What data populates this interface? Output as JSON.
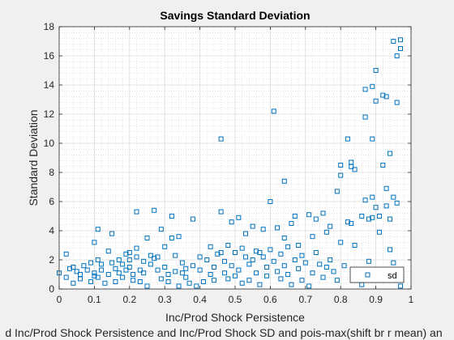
{
  "chart_data": {
    "type": "scatter",
    "title": "Savings Standard Deviation",
    "xlabel": "Inc/Prod Shock Persistence",
    "ylabel": "Standard Deviation",
    "bottom_caption": "d Inc/Prod Shock Persistence and Inc/Prod Shock SD and pois-max(shift br r mean) an",
    "xlim": [
      0,
      1
    ],
    "ylim": [
      0,
      18
    ],
    "x_ticks": [
      "0",
      "0.1",
      "0.2",
      "0.3",
      "0.4",
      "0.5",
      "0.6",
      "0.7",
      "0.8",
      "0.9",
      "1"
    ],
    "y_ticks": [
      "0",
      "2",
      "4",
      "6",
      "8",
      "10",
      "12",
      "14",
      "16",
      "18"
    ],
    "grid": true,
    "minor_grid": true,
    "legend_position": "bottom-right",
    "marker": "square",
    "series_color": "#0072bd",
    "series": [
      {
        "name": "sd",
        "points": [
          [
            0.0,
            1.1
          ],
          [
            0.02,
            0.8
          ],
          [
            0.02,
            2.4
          ],
          [
            0.03,
            1.4
          ],
          [
            0.04,
            1.5
          ],
          [
            0.04,
            0.4
          ],
          [
            0.05,
            1.2
          ],
          [
            0.06,
            0.7
          ],
          [
            0.06,
            1.0
          ],
          [
            0.07,
            1.6
          ],
          [
            0.08,
            1.3
          ],
          [
            0.09,
            0.5
          ],
          [
            0.09,
            1.8
          ],
          [
            0.1,
            1.1
          ],
          [
            0.1,
            0.9
          ],
          [
            0.1,
            3.2
          ],
          [
            0.11,
            4.1
          ],
          [
            0.11,
            0.8
          ],
          [
            0.11,
            2.0
          ],
          [
            0.12,
            1.7
          ],
          [
            0.12,
            1.3
          ],
          [
            0.13,
            0.4
          ],
          [
            0.14,
            1.0
          ],
          [
            0.14,
            2.6
          ],
          [
            0.15,
            1.8
          ],
          [
            0.15,
            3.8
          ],
          [
            0.16,
            0.5
          ],
          [
            0.16,
            1.4
          ],
          [
            0.17,
            2.0
          ],
          [
            0.17,
            1.1
          ],
          [
            0.18,
            1.7
          ],
          [
            0.18,
            0.8
          ],
          [
            0.19,
            2.4
          ],
          [
            0.19,
            1.3
          ],
          [
            0.2,
            2.5
          ],
          [
            0.2,
            2.0
          ],
          [
            0.2,
            1.5
          ],
          [
            0.21,
            1.0
          ],
          [
            0.21,
            0.6
          ],
          [
            0.22,
            2.2
          ],
          [
            0.22,
            2.8
          ],
          [
            0.22,
            5.3
          ],
          [
            0.23,
            1.3
          ],
          [
            0.23,
            0.5
          ],
          [
            0.24,
            1.9
          ],
          [
            0.24,
            1.1
          ],
          [
            0.25,
            0.2
          ],
          [
            0.25,
            3.5
          ],
          [
            0.26,
            2.3
          ],
          [
            0.26,
            1.7
          ],
          [
            0.27,
            5.4
          ],
          [
            0.27,
            2.1
          ],
          [
            0.28,
            2.2
          ],
          [
            0.28,
            1.3
          ],
          [
            0.29,
            0.7
          ],
          [
            0.29,
            4.1
          ],
          [
            0.3,
            2.9
          ],
          [
            0.3,
            1.5
          ],
          [
            0.31,
            1.0
          ],
          [
            0.31,
            0.5
          ],
          [
            0.32,
            5.0
          ],
          [
            0.32,
            3.5
          ],
          [
            0.33,
            1.2
          ],
          [
            0.33,
            2.3
          ],
          [
            0.34,
            0.2
          ],
          [
            0.34,
            3.6
          ],
          [
            0.35,
            1.8
          ],
          [
            0.35,
            1.1
          ],
          [
            0.36,
            0.8
          ],
          [
            0.36,
            1.4
          ],
          [
            0.37,
            0.4
          ],
          [
            0.38,
            4.8
          ],
          [
            0.38,
            1.6
          ],
          [
            0.39,
            0.2
          ],
          [
            0.4,
            2.2
          ],
          [
            0.4,
            1.3
          ],
          [
            0.41,
            0.5
          ],
          [
            0.42,
            2.0
          ],
          [
            0.43,
            1.0
          ],
          [
            0.43,
            2.9
          ],
          [
            0.44,
            1.5
          ],
          [
            0.44,
            0.6
          ],
          [
            0.45,
            2.4
          ],
          [
            0.46,
            2.5
          ],
          [
            0.46,
            5.3
          ],
          [
            0.46,
            10.3
          ],
          [
            0.47,
            1.9
          ],
          [
            0.47,
            1.1
          ],
          [
            0.48,
            0.7
          ],
          [
            0.48,
            3.0
          ],
          [
            0.49,
            4.6
          ],
          [
            0.49,
            1.6
          ],
          [
            0.5,
            0.9
          ],
          [
            0.5,
            2.5
          ],
          [
            0.51,
            4.9
          ],
          [
            0.51,
            1.3
          ],
          [
            0.52,
            0.4
          ],
          [
            0.52,
            2.8
          ],
          [
            0.53,
            2.2
          ],
          [
            0.53,
            3.8
          ],
          [
            0.54,
            1.7
          ],
          [
            0.54,
            0.6
          ],
          [
            0.55,
            2.0
          ],
          [
            0.55,
            4.3
          ],
          [
            0.56,
            1.1
          ],
          [
            0.56,
            2.6
          ],
          [
            0.57,
            2.5
          ],
          [
            0.57,
            0.3
          ],
          [
            0.58,
            4.1
          ],
          [
            0.58,
            2.2
          ],
          [
            0.59,
            1.5
          ],
          [
            0.59,
            0.9
          ],
          [
            0.6,
            6.0
          ],
          [
            0.6,
            2.7
          ],
          [
            0.61,
            12.2
          ],
          [
            0.61,
            1.9
          ],
          [
            0.62,
            4.2
          ],
          [
            0.62,
            1.2
          ],
          [
            0.63,
            2.4
          ],
          [
            0.63,
            0.7
          ],
          [
            0.64,
            3.5
          ],
          [
            0.64,
            1.6
          ],
          [
            0.64,
            7.4
          ],
          [
            0.65,
            2.9
          ],
          [
            0.65,
            1.0
          ],
          [
            0.66,
            4.5
          ],
          [
            0.66,
            0.3
          ],
          [
            0.67,
            2.0
          ],
          [
            0.67,
            5.0
          ],
          [
            0.68,
            3.0
          ],
          [
            0.68,
            1.4
          ],
          [
            0.69,
            0.6
          ],
          [
            0.69,
            2.3
          ],
          [
            0.7,
            1.8
          ],
          [
            0.71,
            5.1
          ],
          [
            0.71,
            0.2
          ],
          [
            0.72,
            3.6
          ],
          [
            0.72,
            1.1
          ],
          [
            0.73,
            4.8
          ],
          [
            0.73,
            2.5
          ],
          [
            0.74,
            1.7
          ],
          [
            0.75,
            5.2
          ],
          [
            0.75,
            0.8
          ],
          [
            0.76,
            3.9
          ],
          [
            0.76,
            1.5
          ],
          [
            0.77,
            2.0
          ],
          [
            0.77,
            4.3
          ],
          [
            0.78,
            1.2
          ],
          [
            0.79,
            6.7
          ],
          [
            0.79,
            0.6
          ],
          [
            0.8,
            8.5
          ],
          [
            0.8,
            7.8
          ],
          [
            0.8,
            3.2
          ],
          [
            0.81,
            1.6
          ],
          [
            0.82,
            10.3
          ],
          [
            0.82,
            4.6
          ],
          [
            0.83,
            8.4
          ],
          [
            0.83,
            8.7
          ],
          [
            0.83,
            4.5
          ],
          [
            0.84,
            8.2
          ],
          [
            0.84,
            3.0
          ],
          [
            0.85,
            1.1
          ],
          [
            0.86,
            0.3
          ],
          [
            0.86,
            5.0
          ],
          [
            0.87,
            13.7
          ],
          [
            0.87,
            11.8
          ],
          [
            0.87,
            6.1
          ],
          [
            0.88,
            1.9
          ],
          [
            0.88,
            4.8
          ],
          [
            0.89,
            13.9
          ],
          [
            0.89,
            6.3
          ],
          [
            0.89,
            4.9
          ],
          [
            0.89,
            10.3
          ],
          [
            0.9,
            15.0
          ],
          [
            0.9,
            12.9
          ],
          [
            0.9,
            5.6
          ],
          [
            0.91,
            5.0
          ],
          [
            0.91,
            3.9
          ],
          [
            0.92,
            13.3
          ],
          [
            0.92,
            8.5
          ],
          [
            0.93,
            13.2
          ],
          [
            0.93,
            6.9
          ],
          [
            0.93,
            5.7
          ],
          [
            0.94,
            9.3
          ],
          [
            0.94,
            4.8
          ],
          [
            0.94,
            2.7
          ],
          [
            0.95,
            17.0
          ],
          [
            0.95,
            6.3
          ],
          [
            0.95,
            1.8
          ],
          [
            0.96,
            12.8
          ],
          [
            0.96,
            5.9
          ],
          [
            0.96,
            16.0
          ],
          [
            0.96,
            1.3
          ],
          [
            0.97,
            16.5
          ],
          [
            0.97,
            17.1
          ],
          [
            0.97,
            0.2
          ]
        ]
      }
    ]
  }
}
